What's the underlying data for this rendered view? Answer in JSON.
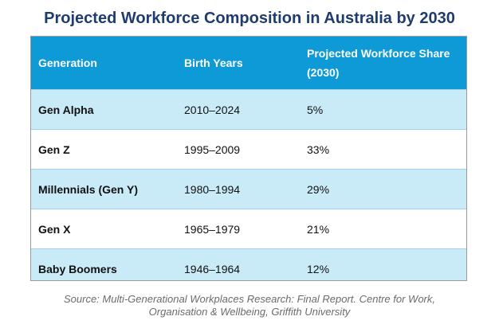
{
  "title": "Projected Workforce Composition in Australia by 2030",
  "chart_data": {
    "type": "table",
    "title": "Projected Workforce Composition in Australia by 2030",
    "columns": [
      "Generation",
      "Birth Years",
      "Projected Workforce Share (2030)"
    ],
    "rows": [
      {
        "generation": "Gen Alpha",
        "birth_years": "2010–2024",
        "share": "5%",
        "share_value": 5
      },
      {
        "generation": "Gen Z",
        "birth_years": "1995–2009",
        "share": "33%",
        "share_value": 33
      },
      {
        "generation": "Millennials (Gen Y)",
        "birth_years": "1980–1994",
        "share": "29%",
        "share_value": 29
      },
      {
        "generation": "Gen X",
        "birth_years": "1965–1979",
        "share": "21%",
        "share_value": 21
      },
      {
        "generation": "Baby Boomers",
        "birth_years": "1946–1964",
        "share": "12%",
        "share_value": 12
      }
    ]
  },
  "colors": {
    "header_bg": "#0e9ad6",
    "stripe_bg": "#c9ebf8",
    "title": "#1f3c6e"
  },
  "source": {
    "line1": "Source: Multi-Generational Workplaces Research: Final Report. Centre for Work,",
    "line2": "Organisation & Wellbeing, Griffith University"
  }
}
